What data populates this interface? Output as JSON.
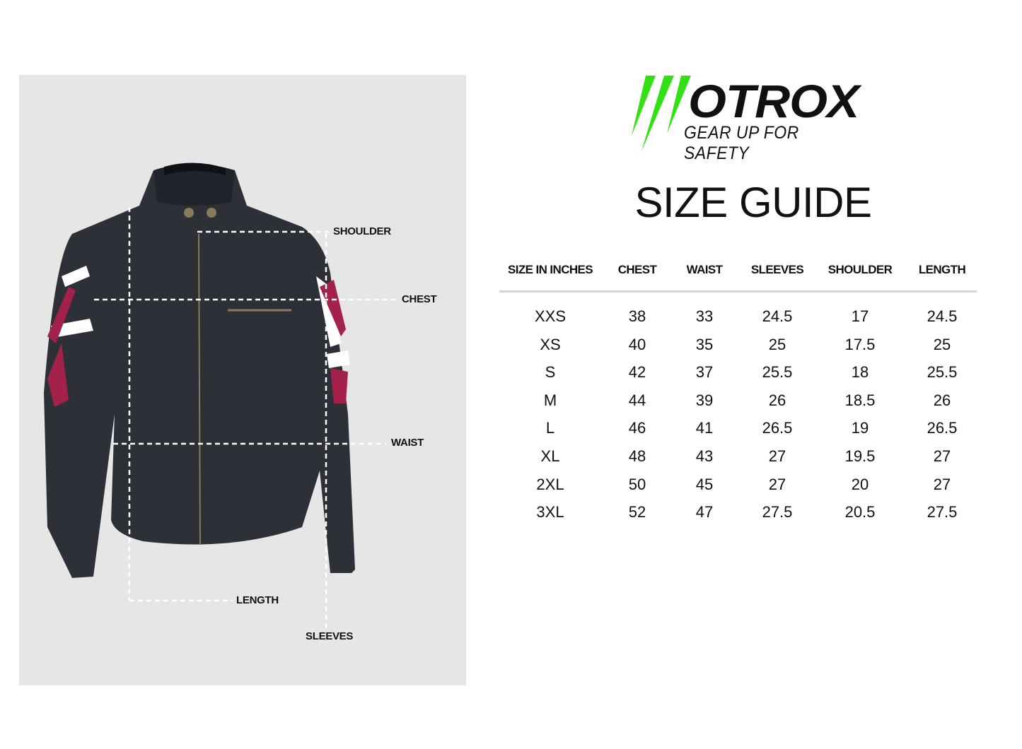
{
  "brand": {
    "name": "OTROX",
    "tagline": "GEAR UP FOR SAFETY",
    "accent_color": "#33e014"
  },
  "title": "SIZE GUIDE",
  "measure_labels": {
    "shoulder": "SHOULDER",
    "chest": "CHEST",
    "waist": "WAIST",
    "length": "LENGTH",
    "sleeves": "SLEEVES"
  },
  "table": {
    "headers": [
      "SIZE IN INCHES",
      "CHEST",
      "WAIST",
      "SLEEVES",
      "SHOULDER",
      "LENGTH"
    ],
    "rows": [
      [
        "XXS",
        "38",
        "33",
        "24.5",
        "17",
        "24.5"
      ],
      [
        "XS",
        "40",
        "35",
        "25",
        "17.5",
        "25"
      ],
      [
        "S",
        "42",
        "37",
        "25.5",
        "18",
        "25.5"
      ],
      [
        "M",
        "44",
        "39",
        "26",
        "18.5",
        "26"
      ],
      [
        "L",
        "46",
        "41",
        "26.5",
        "19",
        "26.5"
      ],
      [
        "XL",
        "48",
        "43",
        "27",
        "19.5",
        "27"
      ],
      [
        "2XL",
        "50",
        "45",
        "27",
        "20",
        "27"
      ],
      [
        "3XL",
        "52",
        "47",
        "27.5",
        "20.5",
        "27.5"
      ]
    ]
  }
}
